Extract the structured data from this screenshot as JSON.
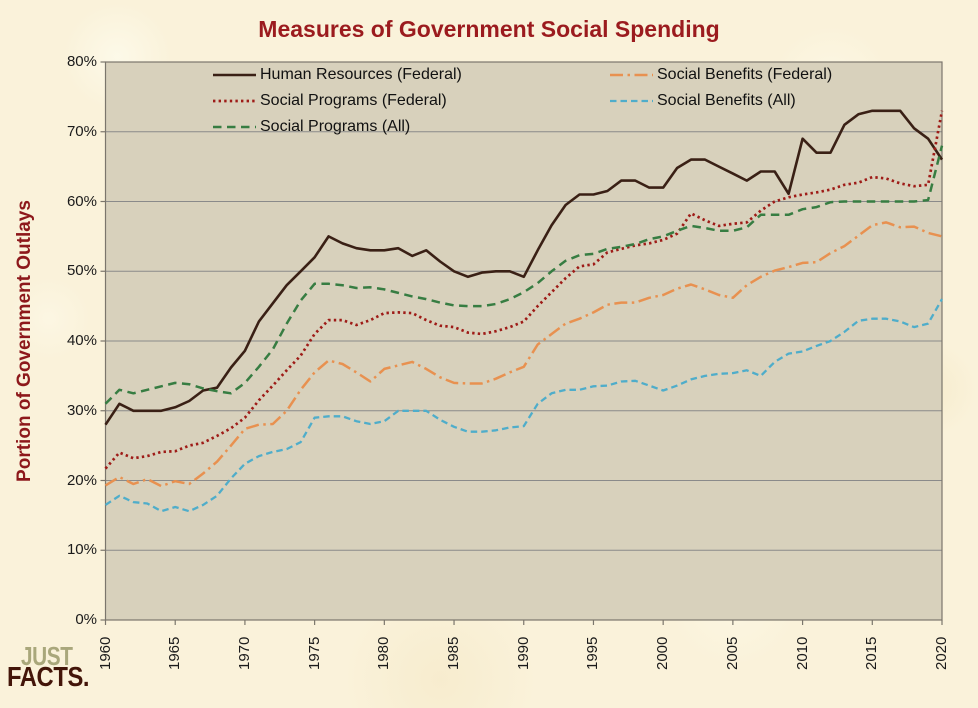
{
  "title": "Measures of Government Social Spending",
  "y_axis": {
    "label": "Portion of Government Outlays",
    "tick_labels": [
      "0%",
      "10%",
      "20%",
      "30%",
      "40%",
      "50%",
      "60%",
      "70%",
      "80%"
    ]
  },
  "x_axis": {
    "tick_labels": [
      "1960",
      "1965",
      "1970",
      "1975",
      "1980",
      "1985",
      "1990",
      "1995",
      "2000",
      "2005",
      "2010",
      "2015",
      "2020"
    ]
  },
  "logo": {
    "line1": "JUST",
    "line2": "FACTS."
  },
  "colors": {
    "title_red": "#9B1B1E",
    "plot_background": "#D8D1BC",
    "gridline": "#8A8A8A",
    "plot_border": "#7B766C",
    "tick_text": "#1a1a1a",
    "logo_just": "#A9A77B",
    "logo_facts": "#431509"
  },
  "chart_data": {
    "type": "line",
    "title": "Measures of Government Social Spending",
    "ylabel": "Portion of Government Outlays",
    "ylim": [
      0,
      80
    ],
    "grid": "horizontal",
    "legend_position": "top-inside-two-columns",
    "years": [
      1960,
      1961,
      1962,
      1963,
      1964,
      1965,
      1966,
      1967,
      1968,
      1969,
      1970,
      1971,
      1972,
      1973,
      1974,
      1975,
      1976,
      1977,
      1978,
      1979,
      1980,
      1981,
      1982,
      1983,
      1984,
      1985,
      1986,
      1987,
      1988,
      1989,
      1990,
      1991,
      1992,
      1993,
      1994,
      1995,
      1996,
      1997,
      1998,
      1999,
      2000,
      2001,
      2002,
      2003,
      2004,
      2005,
      2006,
      2007,
      2008,
      2009,
      2010,
      2011,
      2012,
      2013,
      2014,
      2015,
      2016,
      2017,
      2018,
      2019,
      2020
    ],
    "series": [
      {
        "name": "Human Resources (Federal)",
        "color": "#3A2015",
        "style": "solid",
        "values": [
          28,
          31,
          30,
          30,
          30,
          30.5,
          31.4,
          32.9,
          33.3,
          36.2,
          38.6,
          42.8,
          45.4,
          48,
          50,
          52,
          55,
          54,
          53.3,
          53,
          53,
          53.3,
          52.2,
          53,
          51.4,
          50,
          49.2,
          49.8,
          50,
          50,
          49.2,
          53,
          56.6,
          59.5,
          61,
          61,
          61.5,
          63,
          63,
          62,
          62,
          64.8,
          66,
          66,
          65,
          64,
          63,
          64.3,
          64.3,
          61.1,
          69,
          67,
          67,
          71,
          72.5,
          73,
          73,
          73,
          70.5,
          69,
          66
        ]
      },
      {
        "name": "Social Programs (Federal)",
        "color": "#9E1B17",
        "style": "dotted",
        "values": [
          21.7,
          24,
          23.2,
          23.5,
          24.1,
          24.2,
          25,
          25.4,
          26.4,
          27.5,
          29,
          31.5,
          33.6,
          35.8,
          37.9,
          41,
          43,
          43,
          42.3,
          43,
          44,
          44.1,
          44,
          43,
          42.2,
          42,
          41.2,
          41,
          41.4,
          42,
          42.8,
          45,
          47,
          49,
          50.7,
          51,
          52.7,
          53.2,
          53.7,
          54,
          54.5,
          55.4,
          58.3,
          57.3,
          56.5,
          56.8,
          57,
          58.7,
          60,
          60.6,
          61,
          61.3,
          61.7,
          62.4,
          62.7,
          63.5,
          63.3,
          62.6,
          62.2,
          62.4,
          73
        ]
      },
      {
        "name": "Social Programs (All)",
        "color": "#377D42",
        "style": "dashed",
        "values": [
          31,
          33,
          32.5,
          33,
          33.5,
          34,
          33.8,
          33.2,
          32.8,
          32.5,
          34,
          36.3,
          38.8,
          42.5,
          45.8,
          48.2,
          48.2,
          48,
          47.6,
          47.7,
          47.4,
          46.9,
          46.4,
          46,
          45.5,
          45.1,
          45,
          45,
          45.3,
          46,
          47,
          48.3,
          50,
          51.5,
          52.3,
          52.5,
          53.2,
          53.5,
          53.9,
          54.6,
          55,
          55.8,
          56.5,
          56.2,
          55.8,
          55.8,
          56.3,
          58.1,
          58.1,
          58.1,
          58.9,
          59.2,
          59.9,
          60,
          60,
          60,
          60,
          60,
          60,
          60.2,
          68
        ]
      },
      {
        "name": "Social Benefits (Federal)",
        "color": "#E89150",
        "style": "dashdot",
        "values": [
          19.3,
          20.5,
          19.5,
          20.2,
          19.2,
          19.9,
          19.5,
          21,
          22.7,
          25,
          27.4,
          28,
          28.1,
          30,
          33,
          35.5,
          37.2,
          36.7,
          35.5,
          34.2,
          36,
          36.5,
          37,
          36,
          34.8,
          34,
          33.9,
          33.9,
          34.6,
          35.5,
          36.3,
          39.5,
          41,
          42.5,
          43.2,
          44.1,
          45.2,
          45.5,
          45.5,
          46.2,
          46.6,
          47.5,
          48.1,
          47.4,
          46.6,
          46.2,
          48,
          49.2,
          50.1,
          50.6,
          51.2,
          51.3,
          52.6,
          53.6,
          55.1,
          56.6,
          57,
          56.3,
          56.4,
          55.5,
          55
        ]
      },
      {
        "name": "Social Benefits (All)",
        "color": "#4FADCA",
        "style": "shortdash",
        "values": [
          16.5,
          17.8,
          16.9,
          16.7,
          15.6,
          16.2,
          15.6,
          16.5,
          17.8,
          20.3,
          22.4,
          23.5,
          24.1,
          24.5,
          25.5,
          29,
          29.2,
          29.2,
          28.5,
          28.1,
          28.5,
          30,
          30,
          30,
          28.7,
          27.7,
          27,
          27,
          27.2,
          27.6,
          27.8,
          31,
          32.5,
          33,
          33,
          33.5,
          33.6,
          34.2,
          34.3,
          33.6,
          32.9,
          33.6,
          34.5,
          35,
          35.3,
          35.4,
          35.8,
          35,
          37,
          38.2,
          38.5,
          39.3,
          40,
          41.3,
          42.9,
          43.2,
          43.2,
          42.8,
          42,
          42.5,
          46
        ]
      }
    ]
  }
}
